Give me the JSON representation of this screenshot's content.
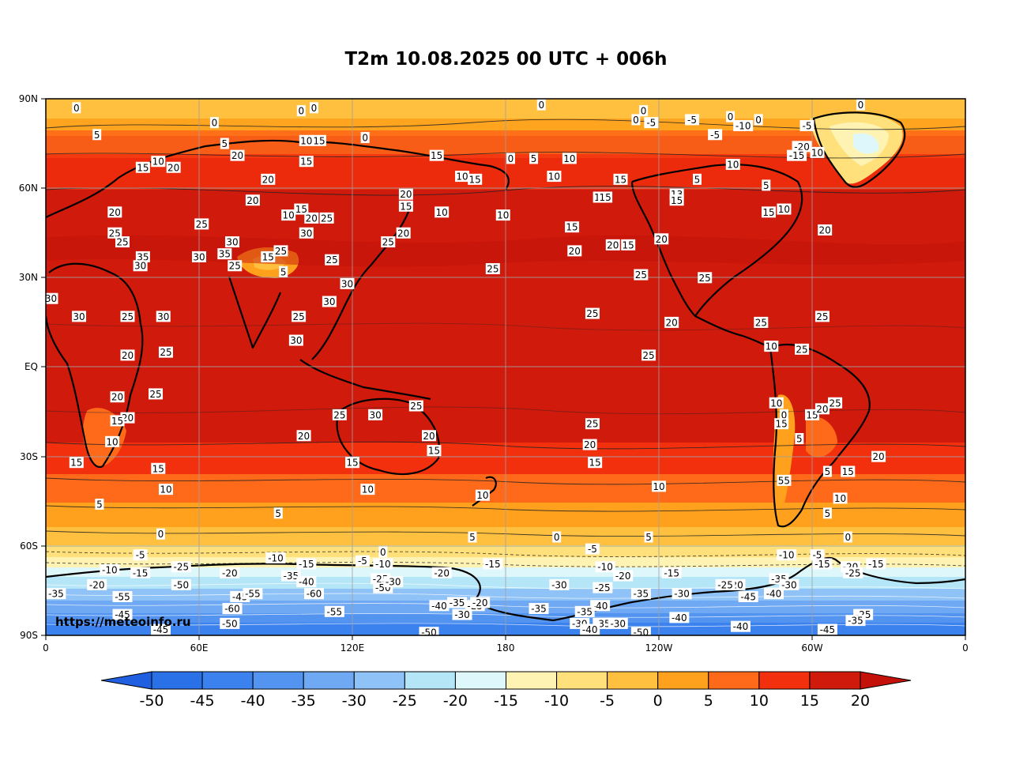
{
  "title": "T2m 10.08.2025 00 UTC + 006h",
  "watermark": "https://meteoinfo.ru",
  "latitude_labels": [
    "90N",
    "60N",
    "30N",
    "EQ",
    "30S",
    "60S",
    "90S"
  ],
  "longitude_labels": [
    "0",
    "60E",
    "120E",
    "180",
    "120W",
    "60W",
    "0"
  ],
  "colorbar": {
    "ticks": [
      "-50",
      "-45",
      "-40",
      "-35",
      "-30",
      "-25",
      "-20",
      "-15",
      "-10",
      "-5",
      "0",
      "5",
      "10",
      "15",
      "20"
    ],
    "colors": [
      "#2a70e6",
      "#3b82ee",
      "#5294f0",
      "#6fa8f3",
      "#8fc2f6",
      "#b4e6f8",
      "#def7fb",
      "#fff3b4",
      "#ffe07a",
      "#ffbf3f",
      "#ffa11c",
      "#ff6a1a",
      "#f2300e",
      "#cf1a0c"
    ],
    "under_color": "#1f5fe0",
    "over_color": "#c4120a"
  },
  "contour_labels": [
    {
      "text": "0",
      "lon": 12,
      "lat": 87
    },
    {
      "text": "0",
      "lon": 100,
      "lat": 86
    },
    {
      "text": "0",
      "lon": 105,
      "lat": 87
    },
    {
      "text": "0",
      "lon": 66,
      "lat": 82
    },
    {
      "text": "0",
      "lon": 125,
      "lat": 77
    },
    {
      "text": "0",
      "lon": 194,
      "lat": 88
    },
    {
      "text": "0",
      "lon": 234,
      "lat": 86
    },
    {
      "text": "0",
      "lon": 231,
      "lat": 83
    },
    {
      "text": "0",
      "lon": 319,
      "lat": 88
    },
    {
      "text": "5",
      "lon": 20,
      "lat": 78
    },
    {
      "text": "5",
      "lon": 70,
      "lat": 75
    },
    {
      "text": "20",
      "lon": 75,
      "lat": 71
    },
    {
      "text": "20",
      "lon": 50,
      "lat": 67
    },
    {
      "text": "10",
      "lon": 44,
      "lat": 69
    },
    {
      "text": "15",
      "lon": 38,
      "lat": 67
    },
    {
      "text": "10",
      "lon": 102,
      "lat": 76
    },
    {
      "text": "15",
      "lon": 107,
      "lat": 76
    },
    {
      "text": "15",
      "lon": 102,
      "lat": 69
    },
    {
      "text": "20",
      "lon": 87,
      "lat": 63
    },
    {
      "text": "20",
      "lon": 81,
      "lat": 56
    },
    {
      "text": "15",
      "lon": 153,
      "lat": 71
    },
    {
      "text": "10",
      "lon": 163,
      "lat": 64
    },
    {
      "text": "15",
      "lon": 168,
      "lat": 63
    },
    {
      "text": "20",
      "lon": 141,
      "lat": 58
    },
    {
      "text": "15",
      "lon": 141,
      "lat": 54
    },
    {
      "text": "0",
      "lon": 182,
      "lat": 70
    },
    {
      "text": "5",
      "lon": 191,
      "lat": 70
    },
    {
      "text": "10",
      "lon": 205,
      "lat": 70
    },
    {
      "text": "10",
      "lon": 199,
      "lat": 64
    },
    {
      "text": "10",
      "lon": 155,
      "lat": 52
    },
    {
      "text": "15",
      "lon": 225,
      "lat": 63
    },
    {
      "text": "10",
      "lon": 217,
      "lat": 57
    },
    {
      "text": "15",
      "lon": 219,
      "lat": 57
    },
    {
      "text": "13",
      "lon": 247,
      "lat": 58
    },
    {
      "text": "15",
      "lon": 247,
      "lat": 56
    },
    {
      "text": "5",
      "lon": 255,
      "lat": 63
    },
    {
      "text": "10",
      "lon": 269,
      "lat": 68
    },
    {
      "text": "5",
      "lon": 282,
      "lat": 61
    },
    {
      "text": "15",
      "lon": 283,
      "lat": 52
    },
    {
      "text": "10",
      "lon": 289,
      "lat": 53
    },
    {
      "text": "20",
      "lon": 305,
      "lat": 46
    },
    {
      "text": "-5",
      "lon": 237,
      "lat": 82
    },
    {
      "text": "-5",
      "lon": 253,
      "lat": 83
    },
    {
      "text": "0",
      "lon": 268,
      "lat": 84
    },
    {
      "text": "-5",
      "lon": 262,
      "lat": 78
    },
    {
      "text": "-10",
      "lon": 273,
      "lat": 81
    },
    {
      "text": "0",
      "lon": 279,
      "lat": 83
    },
    {
      "text": "-5",
      "lon": 298,
      "lat": 81
    },
    {
      "text": "-20",
      "lon": 296,
      "lat": 74
    },
    {
      "text": "-15",
      "lon": 294,
      "lat": 71
    },
    {
      "text": "10",
      "lon": 302,
      "lat": 72
    },
    {
      "text": "20",
      "lon": 27,
      "lat": 52
    },
    {
      "text": "25",
      "lon": 27,
      "lat": 45
    },
    {
      "text": "25",
      "lon": 30,
      "lat": 42
    },
    {
      "text": "35",
      "lon": 38,
      "lat": 37
    },
    {
      "text": "30",
      "lon": 37,
      "lat": 34
    },
    {
      "text": "25",
      "lon": 61,
      "lat": 48
    },
    {
      "text": "30",
      "lon": 60,
      "lat": 37
    },
    {
      "text": "30",
      "lon": 73,
      "lat": 42
    },
    {
      "text": "35",
      "lon": 70,
      "lat": 38
    },
    {
      "text": "25",
      "lon": 74,
      "lat": 34
    },
    {
      "text": "15",
      "lon": 87,
      "lat": 37
    },
    {
      "text": "25",
      "lon": 92,
      "lat": 39
    },
    {
      "text": "5",
      "lon": 93,
      "lat": 32
    },
    {
      "text": "10",
      "lon": 95,
      "lat": 51
    },
    {
      "text": "15",
      "lon": 100,
      "lat": 53
    },
    {
      "text": "20",
      "lon": 104,
      "lat": 50
    },
    {
      "text": "25",
      "lon": 110,
      "lat": 50
    },
    {
      "text": "30",
      "lon": 102,
      "lat": 45
    },
    {
      "text": "25",
      "lon": 112,
      "lat": 36
    },
    {
      "text": "30",
      "lon": 118,
      "lat": 28
    },
    {
      "text": "30",
      "lon": 111,
      "lat": 22
    },
    {
      "text": "20",
      "lon": 140,
      "lat": 45
    },
    {
      "text": "25",
      "lon": 134,
      "lat": 42
    },
    {
      "text": "10",
      "lon": 179,
      "lat": 51
    },
    {
      "text": "25",
      "lon": 175,
      "lat": 33
    },
    {
      "text": "15",
      "lon": 206,
      "lat": 47
    },
    {
      "text": "20",
      "lon": 207,
      "lat": 39
    },
    {
      "text": "20",
      "lon": 222,
      "lat": 41
    },
    {
      "text": "15",
      "lon": 228,
      "lat": 41
    },
    {
      "text": "20",
      "lon": 241,
      "lat": 43
    },
    {
      "text": "25",
      "lon": 233,
      "lat": 31
    },
    {
      "text": "25",
      "lon": 258,
      "lat": 30
    },
    {
      "text": "30",
      "lon": 2,
      "lat": 23
    },
    {
      "text": "30",
      "lon": 13,
      "lat": 17
    },
    {
      "text": "25",
      "lon": 32,
      "lat": 17
    },
    {
      "text": "30",
      "lon": 46,
      "lat": 17
    },
    {
      "text": "25",
      "lon": 47,
      "lat": 5
    },
    {
      "text": "20",
      "lon": 32,
      "lat": 4
    },
    {
      "text": "25",
      "lon": 99,
      "lat": 17
    },
    {
      "text": "30",
      "lon": 98,
      "lat": 9
    },
    {
      "text": "25",
      "lon": 214,
      "lat": 18
    },
    {
      "text": "20",
      "lon": 245,
      "lat": 15
    },
    {
      "text": "25",
      "lon": 236,
      "lat": 4
    },
    {
      "text": "10",
      "lon": 284,
      "lat": 7
    },
    {
      "text": "25",
      "lon": 296,
      "lat": 6
    },
    {
      "text": "25",
      "lon": 304,
      "lat": 17
    },
    {
      "text": "25",
      "lon": 280,
      "lat": 15
    },
    {
      "text": "20",
      "lon": 28,
      "lat": -10
    },
    {
      "text": "25",
      "lon": 43,
      "lat": -9
    },
    {
      "text": "20",
      "lon": 32,
      "lat": -17
    },
    {
      "text": "15",
      "lon": 28,
      "lat": -18
    },
    {
      "text": "10",
      "lon": 26,
      "lat": -25
    },
    {
      "text": "15",
      "lon": 12,
      "lat": -32
    },
    {
      "text": "15",
      "lon": 44,
      "lat": -34
    },
    {
      "text": "10",
      "lon": 47,
      "lat": -41
    },
    {
      "text": "5",
      "lon": 21,
      "lat": -46
    },
    {
      "text": "0",
      "lon": 45,
      "lat": -56
    },
    {
      "text": "5",
      "lon": 91,
      "lat": -49
    },
    {
      "text": "25",
      "lon": 115,
      "lat": -16
    },
    {
      "text": "30",
      "lon": 129,
      "lat": -16
    },
    {
      "text": "25",
      "lon": 145,
      "lat": -13
    },
    {
      "text": "20",
      "lon": 150,
      "lat": -23
    },
    {
      "text": "15",
      "lon": 152,
      "lat": -28
    },
    {
      "text": "20",
      "lon": 101,
      "lat": -23
    },
    {
      "text": "15",
      "lon": 120,
      "lat": -32
    },
    {
      "text": "10",
      "lon": 126,
      "lat": -41
    },
    {
      "text": "10",
      "lon": 171,
      "lat": -43
    },
    {
      "text": "5",
      "lon": 167,
      "lat": -57
    },
    {
      "text": "25",
      "lon": 214,
      "lat": -19
    },
    {
      "text": "20",
      "lon": 213,
      "lat": -26
    },
    {
      "text": "15",
      "lon": 215,
      "lat": -32
    },
    {
      "text": "10",
      "lon": 240,
      "lat": -40
    },
    {
      "text": "5",
      "lon": 236,
      "lat": -57
    },
    {
      "text": "0",
      "lon": 200,
      "lat": -57
    },
    {
      "text": "10",
      "lon": 286,
      "lat": -12
    },
    {
      "text": "0",
      "lon": 289,
      "lat": -16
    },
    {
      "text": "15",
      "lon": 288,
      "lat": -19
    },
    {
      "text": "15",
      "lon": 300,
      "lat": -16
    },
    {
      "text": "20",
      "lon": 304,
      "lat": -14
    },
    {
      "text": "25",
      "lon": 309,
      "lat": -12
    },
    {
      "text": "5",
      "lon": 295,
      "lat": -24
    },
    {
      "text": "55",
      "lon": 289,
      "lat": -38
    },
    {
      "text": "5",
      "lon": 306,
      "lat": -35
    },
    {
      "text": "15",
      "lon": 314,
      "lat": -35
    },
    {
      "text": "10",
      "lon": 311,
      "lat": -44
    },
    {
      "text": "5",
      "lon": 306,
      "lat": -49
    },
    {
      "text": "0",
      "lon": 314,
      "lat": -57
    },
    {
      "text": "20",
      "lon": 326,
      "lat": -30
    },
    {
      "text": "-5",
      "lon": 37,
      "lat": -63
    },
    {
      "text": "-10",
      "lon": 25,
      "lat": -68
    },
    {
      "text": "-15",
      "lon": 37,
      "lat": -69
    },
    {
      "text": "-20",
      "lon": 20,
      "lat": -73
    },
    {
      "text": "-25",
      "lon": 53,
      "lat": -67
    },
    {
      "text": "-20",
      "lon": 72,
      "lat": -69
    },
    {
      "text": "-50",
      "lon": 53,
      "lat": -73
    },
    {
      "text": "-35",
      "lon": 4,
      "lat": -76
    },
    {
      "text": "-55",
      "lon": 30,
      "lat": -77
    },
    {
      "text": "-45",
      "lon": 30,
      "lat": -83
    },
    {
      "text": "-45",
      "lon": 45,
      "lat": -88
    },
    {
      "text": "-60",
      "lon": 73,
      "lat": -81
    },
    {
      "text": "-45",
      "lon": 76,
      "lat": -77
    },
    {
      "text": "-55",
      "lon": 81,
      "lat": -76
    },
    {
      "text": "-50",
      "lon": 72,
      "lat": -86
    },
    {
      "text": "-10",
      "lon": 90,
      "lat": -64
    },
    {
      "text": "-15",
      "lon": 102,
      "lat": -66
    },
    {
      "text": "-35",
      "lon": 96,
      "lat": -70
    },
    {
      "text": "-40",
      "lon": 102,
      "lat": -72
    },
    {
      "text": "-60",
      "lon": 105,
      "lat": -76
    },
    {
      "text": "-55",
      "lon": 113,
      "lat": -82
    },
    {
      "text": "-5",
      "lon": 124,
      "lat": -65
    },
    {
      "text": "-10",
      "lon": 132,
      "lat": -66
    },
    {
      "text": "0",
      "lon": 132,
      "lat": -62
    },
    {
      "text": "-25",
      "lon": 131,
      "lat": -71
    },
    {
      "text": "-50",
      "lon": 132,
      "lat": -74
    },
    {
      "text": "-30",
      "lon": 136,
      "lat": -72
    },
    {
      "text": "-20",
      "lon": 155,
      "lat": -69
    },
    {
      "text": "-40",
      "lon": 154,
      "lat": -80
    },
    {
      "text": "-35",
      "lon": 161,
      "lat": -79
    },
    {
      "text": "-25",
      "lon": 168,
      "lat": -80
    },
    {
      "text": "-20",
      "lon": 170,
      "lat": -79
    },
    {
      "text": "-30",
      "lon": 163,
      "lat": -83
    },
    {
      "text": "-50",
      "lon": 150,
      "lat": -89
    },
    {
      "text": "-15",
      "lon": 175,
      "lat": -66
    },
    {
      "text": "-35",
      "lon": 193,
      "lat": -81
    },
    {
      "text": "-30",
      "lon": 201,
      "lat": -73
    },
    {
      "text": "-5",
      "lon": 214,
      "lat": -61
    },
    {
      "text": "-10",
      "lon": 219,
      "lat": -67
    },
    {
      "text": "-20",
      "lon": 226,
      "lat": -70
    },
    {
      "text": "-25",
      "lon": 218,
      "lat": -74
    },
    {
      "text": "-40",
      "lon": 217,
      "lat": -80
    },
    {
      "text": "-35",
      "lon": 211,
      "lat": -82
    },
    {
      "text": "-30",
      "lon": 209,
      "lat": -86
    },
    {
      "text": "-35",
      "lon": 218,
      "lat": -86
    },
    {
      "text": "-40",
      "lon": 213,
      "lat": -88
    },
    {
      "text": "-30",
      "lon": 224,
      "lat": -86
    },
    {
      "text": "-50",
      "lon": 233,
      "lat": -89
    },
    {
      "text": "-35",
      "lon": 233,
      "lat": -76
    },
    {
      "text": "-15",
      "lon": 245,
      "lat": -69
    },
    {
      "text": "-30",
      "lon": 249,
      "lat": -76
    },
    {
      "text": "-40",
      "lon": 248,
      "lat": -84
    },
    {
      "text": "-20",
      "lon": 270,
      "lat": -73
    },
    {
      "text": "-25",
      "lon": 266,
      "lat": -73
    },
    {
      "text": "-45",
      "lon": 275,
      "lat": -77
    },
    {
      "text": "-40",
      "lon": 285,
      "lat": -76
    },
    {
      "text": "-35",
      "lon": 287,
      "lat": -71
    },
    {
      "text": "-30",
      "lon": 291,
      "lat": -73
    },
    {
      "text": "-40",
      "lon": 272,
      "lat": -87
    },
    {
      "text": "-10",
      "lon": 290,
      "lat": -63
    },
    {
      "text": "-5",
      "lon": 302,
      "lat": -63
    },
    {
      "text": "-15",
      "lon": 304,
      "lat": -66
    },
    {
      "text": "-20",
      "lon": 315,
      "lat": -67
    },
    {
      "text": "-15",
      "lon": 325,
      "lat": -66
    },
    {
      "text": "-25",
      "lon": 316,
      "lat": -69
    },
    {
      "text": "-45",
      "lon": 306,
      "lat": -88
    },
    {
      "text": "-25",
      "lon": 320,
      "lat": -83
    },
    {
      "text": "-35",
      "lon": 317,
      "lat": -85
    }
  ]
}
